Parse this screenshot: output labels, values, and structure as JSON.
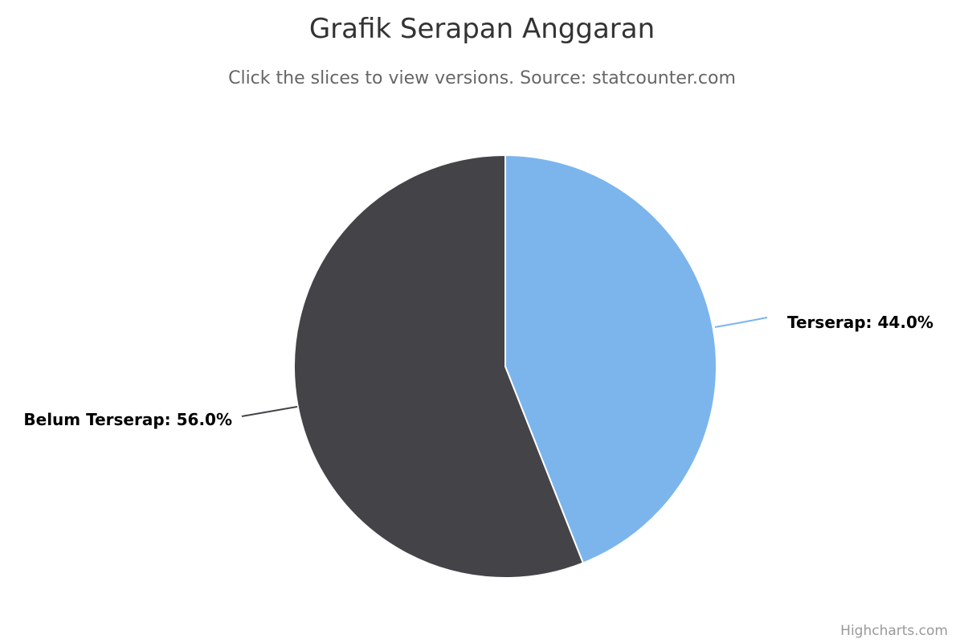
{
  "chart_data": {
    "type": "pie",
    "title": "Grafik Serapan Anggaran",
    "subtitle": "Click the slices to view versions. Source: statcounter.com",
    "series": [
      {
        "data": [
          {
            "name": "Terserap",
            "y": 44.0,
            "color": "#7cb5ec",
            "label": "Terserap: 44.0%"
          },
          {
            "name": "Belum Terserap",
            "y": 56.0,
            "color": "#434348",
            "label": "Belum Terserap: 56.0%"
          }
        ]
      }
    ],
    "data_labels": "outside with connector lines",
    "legend": "none"
  },
  "credits": {
    "text": "Highcharts.com"
  }
}
